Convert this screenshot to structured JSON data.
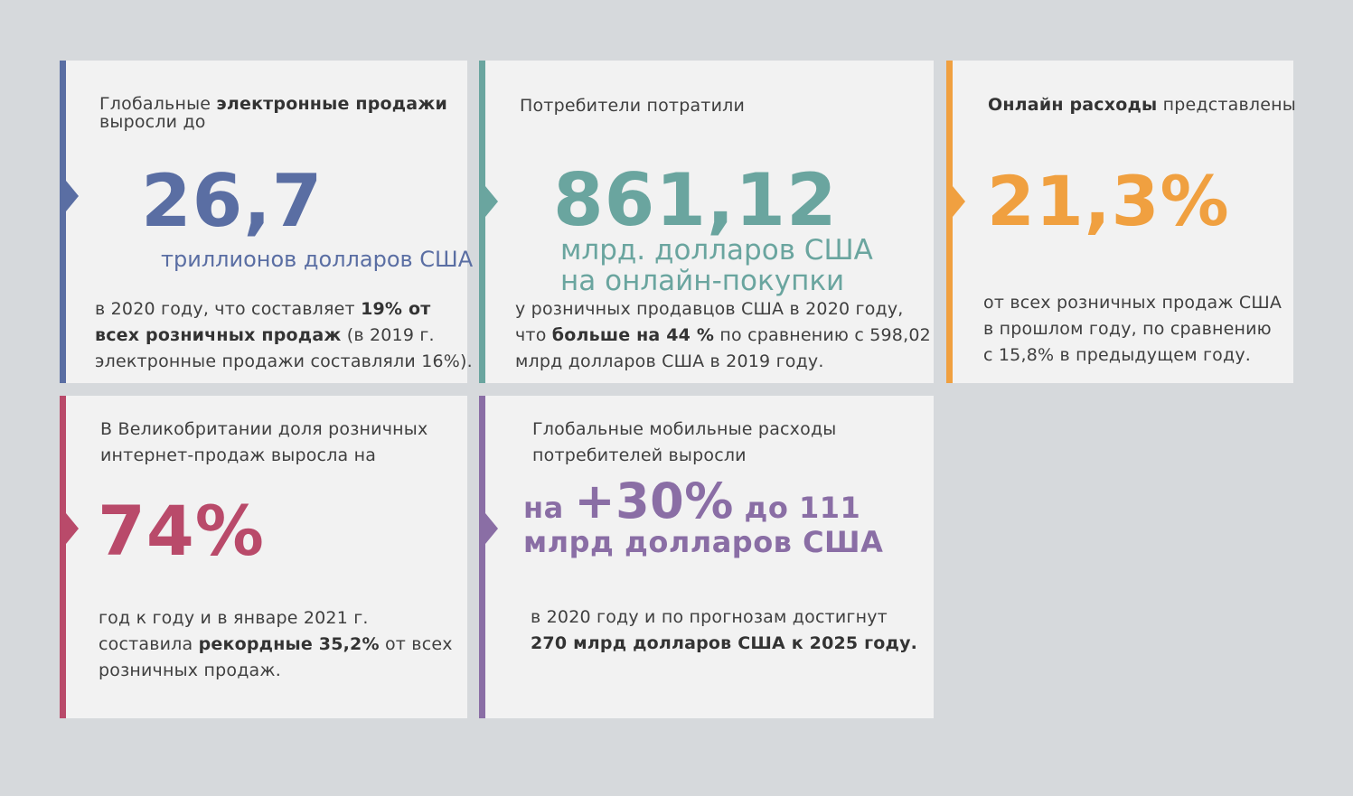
{
  "colors": {
    "background": "#d6d9dc",
    "card": "#f2f2f2",
    "blue": "#5a6ea3",
    "teal": "#6aa59f",
    "orange": "#f0a040",
    "crimson": "#b94a6a",
    "purple": "#8a6ea5"
  },
  "card1": {
    "heading_pre": "Глобальные ",
    "heading_bold": "электронные продажи",
    "heading_line2": "выросли до",
    "big_value": "26,7",
    "unit": "триллионов долларов США",
    "body_l1_pre": "в 2020 году, что составляет ",
    "body_l1_bold": "19% от",
    "body_l2_bold": "всех розничных продаж",
    "body_l2_post": " (в 2019 г.",
    "body_l3": "электронные продажи составляли 16%)."
  },
  "card2": {
    "heading": "Потребители потратили",
    "big_value": "861,12",
    "unit_l1": "млрд. долларов США",
    "unit_l2": "на онлайн-покупки",
    "body_l1": "у розничных продавцов США в 2020 году,",
    "body_l2_pre": "что ",
    "body_l2_bold": "больше на 44 %",
    "body_l2_post": " по сравнению с 598,02",
    "body_l3": "млрд долларов США в 2019 году."
  },
  "card3": {
    "heading_bold": "Онлайн расходы",
    "heading_post": " представлены",
    "big_value": "21,3%",
    "body_l1": "от всех розничных продаж США",
    "body_l2": "в прошлом году, по сравнению",
    "body_l3": "с 15,8% в предыдущем году."
  },
  "card4": {
    "heading_l1": "В Великобритании доля розничных",
    "heading_l2": "интернет-продаж выросла на",
    "big_value": "74%",
    "body_l1": "год к году и в январе 2021 г.",
    "body_l2_pre": "составила ",
    "body_l2_bold": "рекордные 35,2%",
    "body_l2_post": " от всех",
    "body_l3": "розничных продаж."
  },
  "card5": {
    "heading_l1": "Глобальные мобильные расходы",
    "heading_l2": "потребителей выросли",
    "big_pre": "на ",
    "big_value": "+30%",
    "big_post": " до 111",
    "big_l2": "млрд долларов США",
    "body_l1": "в 2020 году и по прогнозам достигнут",
    "body_l2_bold": "270 млрд долларов США к 2025 году."
  }
}
